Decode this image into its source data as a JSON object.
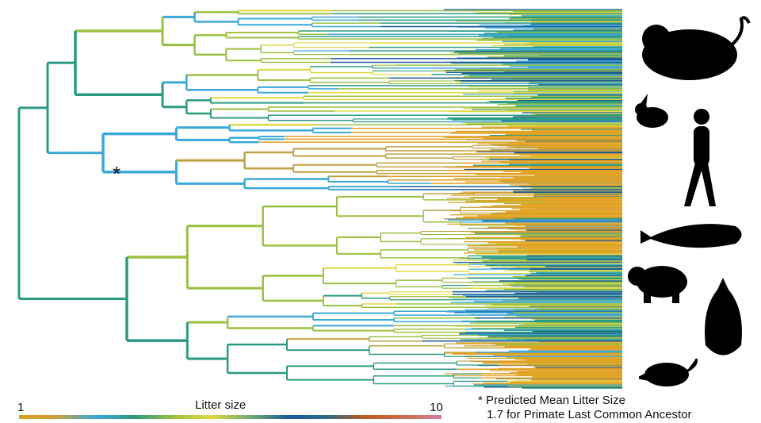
{
  "legend": {
    "title": "Litter size",
    "min_label": "1",
    "max_label": "10",
    "colors": [
      "#e0a020",
      "#3aa8d8",
      "#2a9a80",
      "#e0d840",
      "#1a5a9a",
      "#c05a20",
      "#d080a0"
    ]
  },
  "annotation": {
    "marker": "*",
    "line1": "* Predicted Mean Litter Size",
    "line2": "1.7 for Primate Last Common Ancestor"
  },
  "silhouettes": [
    "rodent-icon",
    "rabbit-icon",
    "human-icon",
    "whale-icon",
    "bear-icon",
    "bat-icon",
    "shrew-icon"
  ]
}
